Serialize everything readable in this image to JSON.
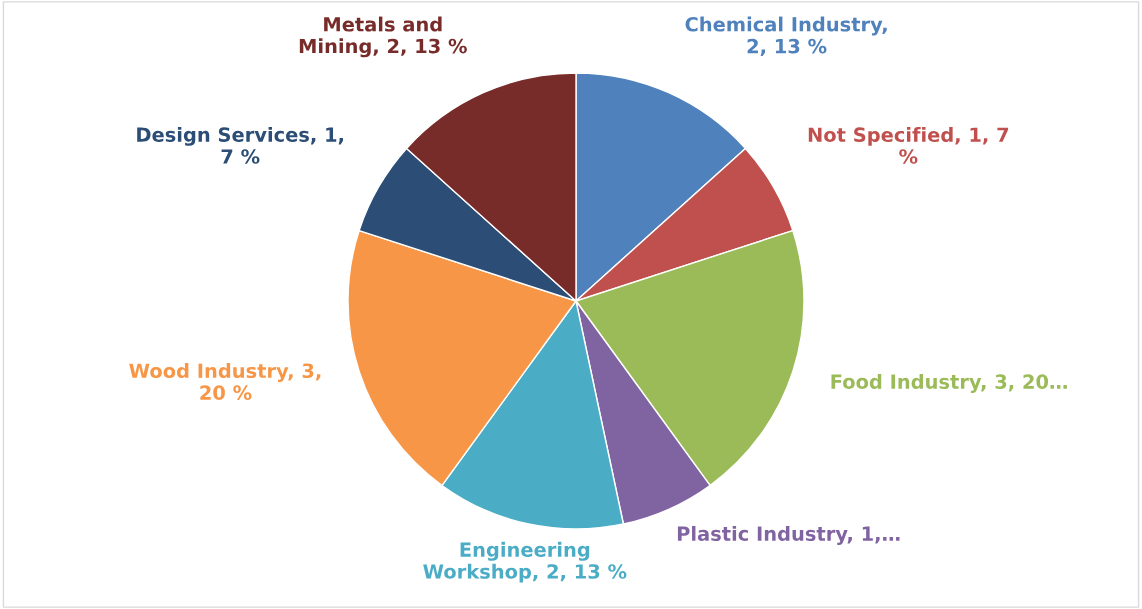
{
  "chart_data": {
    "type": "pie",
    "categories": [
      "Chemical Industry",
      "Not Specified",
      "Food Industry",
      "Plastic Industry",
      "Engineering\nWorkshop",
      "Wood Industry",
      "Design Services",
      "Metals and\nMining"
    ],
    "values": [
      2,
      1,
      3,
      1,
      2,
      3,
      1,
      2
    ],
    "value_labels": [
      ",\n2, 13 %",
      ", 1, 7\n%",
      ", 3, 20…",
      ", 1,…",
      ", 2, 13 %",
      ", 3,\n20 %",
      ", 1,\n7 %",
      ", 2, 13 %"
    ],
    "colors": [
      "#4f81bd",
      "#c0504d",
      "#9bbb59",
      "#8064a2",
      "#4bacc6",
      "#f79646",
      "#2c4d75",
      "#772c2a"
    ],
    "legend": false
  }
}
